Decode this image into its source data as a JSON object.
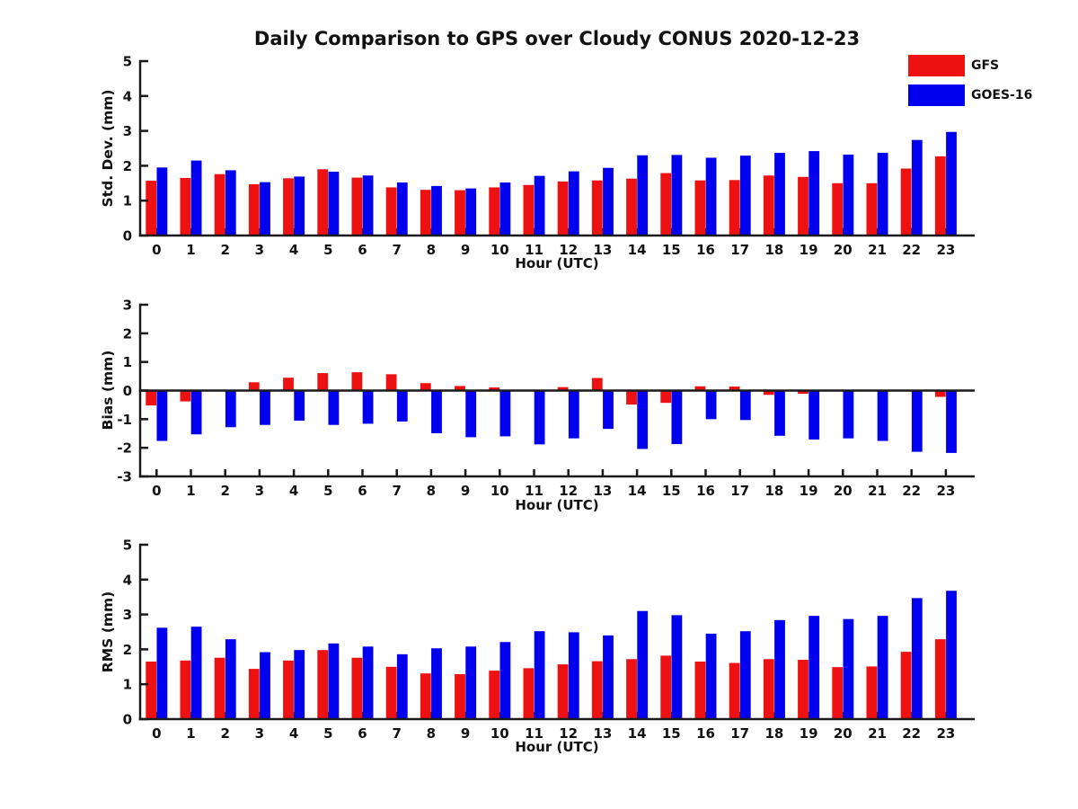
{
  "title": "Daily Comparison to GPS over Cloudy CONUS 2020-12-23",
  "legend": {
    "items": [
      {
        "label": "GFS",
        "color": "#EE1111"
      },
      {
        "label": "GOES-16",
        "color": "#0000EE"
      }
    ]
  },
  "colors": {
    "gfs": "#EE1111",
    "goes16": "#0000EE",
    "axis": "#1A1A1A",
    "text": "#111111"
  },
  "chart_data": [
    {
      "type": "bar",
      "title": "Daily Comparison to GPS over Cloudy CONUS 2020-12-23",
      "ylabel": "Std. Dev. (mm)",
      "xlabel": "Hour (UTC)",
      "ylim": [
        0,
        5
      ],
      "yticks": [
        0,
        1,
        2,
        3,
        4,
        5
      ],
      "grid": false,
      "legend_position": "outside-upper-right",
      "categories": [
        "0",
        "1",
        "2",
        "3",
        "4",
        "5",
        "6",
        "7",
        "8",
        "9",
        "10",
        "11",
        "12",
        "13",
        "14",
        "15",
        "16",
        "17",
        "18",
        "19",
        "20",
        "21",
        "22",
        "23"
      ],
      "series": [
        {
          "name": "GFS",
          "color": "#EE1111",
          "values": [
            1.57,
            1.65,
            1.76,
            1.47,
            1.64,
            1.9,
            1.66,
            1.38,
            1.31,
            1.3,
            1.38,
            1.45,
            1.55,
            1.58,
            1.63,
            1.79,
            1.58,
            1.59,
            1.72,
            1.68,
            1.5,
            1.5,
            1.92,
            2.27
          ]
        },
        {
          "name": "GOES-16",
          "color": "#0000EE",
          "values": [
            1.95,
            2.15,
            1.87,
            1.53,
            1.69,
            1.83,
            1.72,
            1.52,
            1.42,
            1.35,
            1.52,
            1.71,
            1.84,
            1.94,
            2.3,
            2.31,
            2.23,
            2.29,
            2.37,
            2.42,
            2.32,
            2.37,
            2.74,
            2.97
          ]
        }
      ]
    },
    {
      "type": "bar",
      "title": "",
      "ylabel": "Bias (mm)",
      "xlabel": "Hour (UTC)",
      "ylim": [
        -3,
        3
      ],
      "yticks": [
        -3,
        -2,
        -1,
        0,
        1,
        2,
        3
      ],
      "grid": false,
      "zero_line": true,
      "categories": [
        "0",
        "1",
        "2",
        "3",
        "4",
        "5",
        "6",
        "7",
        "8",
        "9",
        "10",
        "11",
        "12",
        "13",
        "14",
        "15",
        "16",
        "17",
        "18",
        "19",
        "20",
        "21",
        "22",
        "23"
      ],
      "series": [
        {
          "name": "GFS",
          "color": "#EE1111",
          "values": [
            -0.52,
            -0.38,
            0.03,
            0.29,
            0.45,
            0.61,
            0.64,
            0.57,
            0.26,
            0.16,
            0.11,
            0.0,
            0.12,
            0.44,
            -0.49,
            -0.43,
            0.15,
            0.14,
            -0.15,
            -0.11,
            0.0,
            -0.01,
            -0.02,
            -0.22
          ]
        },
        {
          "name": "GOES-16",
          "color": "#0000EE",
          "values": [
            -1.76,
            -1.53,
            -1.28,
            -1.2,
            -1.05,
            -1.2,
            -1.16,
            -1.08,
            -1.49,
            -1.63,
            -1.6,
            -1.88,
            -1.67,
            -1.34,
            -2.04,
            -1.87,
            -1.0,
            -1.03,
            -1.58,
            -1.71,
            -1.67,
            -1.76,
            -2.14,
            -2.18
          ]
        }
      ]
    },
    {
      "type": "bar",
      "title": "",
      "ylabel": "RMS (mm)",
      "xlabel": "Hour (UTC)",
      "ylim": [
        0,
        5
      ],
      "yticks": [
        0,
        1,
        2,
        3,
        4,
        5
      ],
      "grid": false,
      "categories": [
        "0",
        "1",
        "2",
        "3",
        "4",
        "5",
        "6",
        "7",
        "8",
        "9",
        "10",
        "11",
        "12",
        "13",
        "14",
        "15",
        "16",
        "17",
        "18",
        "19",
        "20",
        "21",
        "22",
        "23"
      ],
      "series": [
        {
          "name": "GFS",
          "color": "#EE1111",
          "values": [
            1.65,
            1.68,
            1.76,
            1.44,
            1.68,
            1.98,
            1.76,
            1.5,
            1.31,
            1.29,
            1.39,
            1.46,
            1.57,
            1.66,
            1.72,
            1.82,
            1.65,
            1.61,
            1.72,
            1.7,
            1.49,
            1.51,
            1.93,
            2.29
          ]
        },
        {
          "name": "GOES-16",
          "color": "#0000EE",
          "values": [
            2.62,
            2.65,
            2.29,
            1.92,
            1.98,
            2.17,
            2.08,
            1.86,
            2.03,
            2.08,
            2.21,
            2.52,
            2.49,
            2.4,
            3.1,
            2.98,
            2.45,
            2.52,
            2.84,
            2.96,
            2.87,
            2.96,
            3.47,
            3.68
          ]
        }
      ]
    }
  ]
}
